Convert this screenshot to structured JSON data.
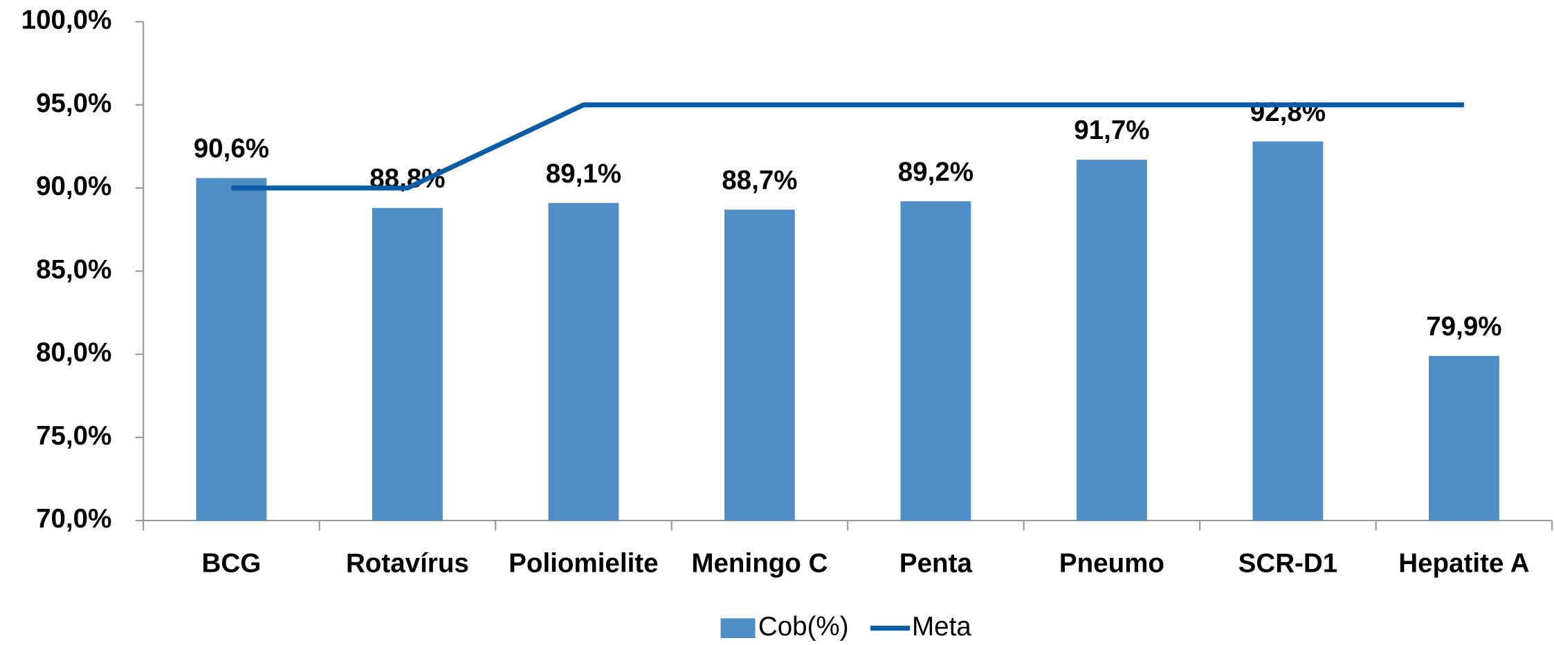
{
  "chart_data": {
    "type": "bar",
    "categories": [
      "BCG",
      "Rotavírus",
      "Poliomielite",
      "Meningo C",
      "Penta",
      "Pneumo",
      "SCR-D1",
      "Hepatite A"
    ],
    "series": [
      {
        "name": "Cob(%)",
        "type": "bar",
        "color": "#4f8dc6",
        "values": [
          90.6,
          88.8,
          89.1,
          88.7,
          89.2,
          91.7,
          92.8,
          79.9
        ],
        "value_labels": [
          "90,6%",
          "88,8%",
          "89,1%",
          "88,7%",
          "89,2%",
          "91,7%",
          "92,8%",
          "79,9%"
        ]
      },
      {
        "name": "Meta",
        "type": "line",
        "color": "#0b5ca8",
        "values": [
          90,
          90,
          95,
          95,
          95,
          95,
          95,
          95
        ]
      }
    ],
    "ylim": [
      70,
      100
    ],
    "yticks": [
      {
        "value": 70,
        "label": "70,0%"
      },
      {
        "value": 75,
        "label": "75,0%"
      },
      {
        "value": 80,
        "label": "80,0%"
      },
      {
        "value": 85,
        "label": "85,0%"
      },
      {
        "value": 90,
        "label": "90,0%"
      },
      {
        "value": 95,
        "label": "95,0%"
      },
      {
        "value": 100,
        "label": "100,0%"
      }
    ],
    "legend": "bottom"
  }
}
